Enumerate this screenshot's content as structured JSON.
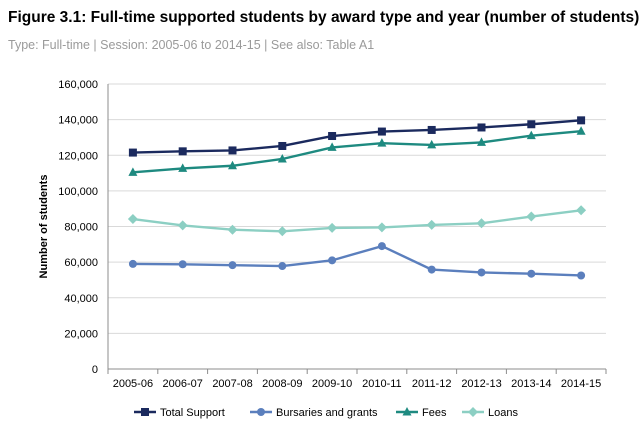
{
  "figure": {
    "title": "Figure 3.1: Full-time supported students by award type and year (number of students)",
    "subtitle": "Type: Full-time  |  Session: 2005-06 to 2014-15  |  See also: Table A1"
  },
  "chart_data": {
    "type": "line",
    "title": "",
    "xlabel": "",
    "ylabel": "Number of students",
    "ylim": [
      0,
      160000
    ],
    "yticks": [
      0,
      20000,
      40000,
      60000,
      80000,
      100000,
      120000,
      140000,
      160000
    ],
    "ytick_labels": [
      "0",
      "20,000",
      "40,000",
      "60,000",
      "80,000",
      "100,000",
      "120,000",
      "140,000",
      "160,000"
    ],
    "grid": "horizontal",
    "legend_position": "bottom",
    "categories": [
      "2005-06",
      "2006-07",
      "2007-08",
      "2008-09",
      "2009-10",
      "2010-11",
      "2011-12",
      "2012-13",
      "2013-14",
      "2014-15"
    ],
    "series": [
      {
        "name": "Total Support",
        "color": "#1b2a5e",
        "marker": "square",
        "values": [
          121500,
          122200,
          122700,
          125200,
          130800,
          133300,
          134200,
          135600,
          137400,
          139600
        ]
      },
      {
        "name": "Bursaries and grants",
        "color": "#5b7fbd",
        "marker": "circle",
        "values": [
          59000,
          58800,
          58300,
          57800,
          61000,
          69000,
          55800,
          54200,
          53500,
          52500
        ]
      },
      {
        "name": "Fees",
        "color": "#1e8a80",
        "marker": "triangle",
        "values": [
          110400,
          112600,
          114100,
          117900,
          124400,
          126800,
          125800,
          127200,
          131000,
          133500
        ]
      },
      {
        "name": "Loans",
        "color": "#8ccfc3",
        "marker": "diamond",
        "values": [
          84200,
          80600,
          78200,
          77300,
          79200,
          79500,
          80900,
          81800,
          85600,
          89100
        ]
      }
    ]
  }
}
